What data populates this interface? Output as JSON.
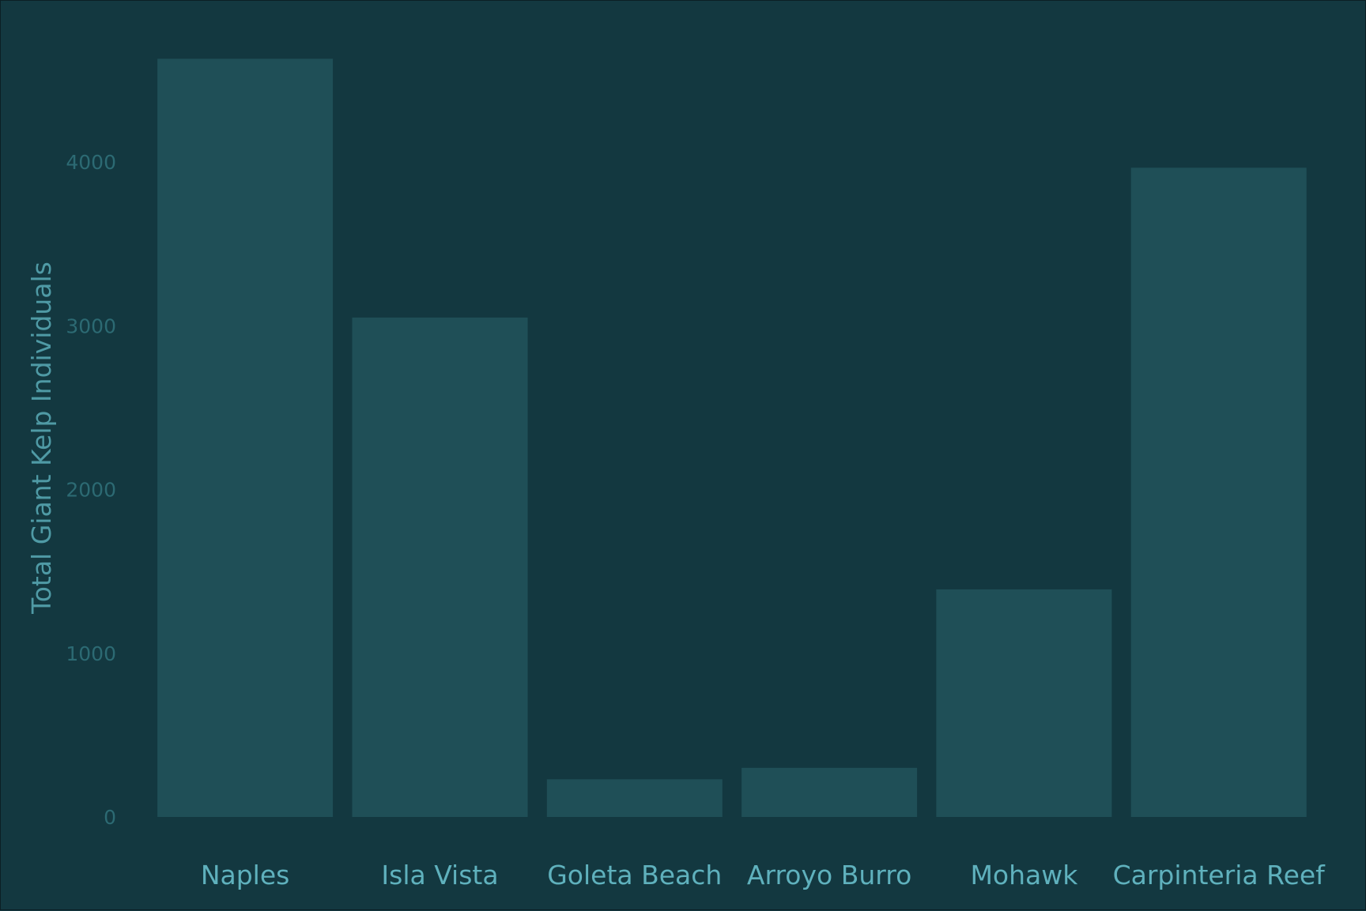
{
  "colors": {
    "background": "#133840",
    "bar": "#1f4f57",
    "tick_label": "#2c6a73",
    "category_label": "#5fb1bd",
    "axis_title": "#4f9aa5"
  },
  "chart_data": {
    "type": "bar",
    "title": "",
    "xlabel": "",
    "ylabel": "Total Giant Kelp Individuals",
    "categories": [
      "Naples",
      "Isla Vista",
      "Goleta Beach",
      "Arroyo Burro",
      "Mohawk",
      "Carpinteria Reef"
    ],
    "values": [
      4630,
      3050,
      230,
      300,
      1390,
      3965
    ],
    "yticks": [
      0,
      1000,
      2000,
      3000,
      4000
    ],
    "ylim": [
      0,
      4800
    ],
    "grid": false,
    "legend": "none"
  }
}
